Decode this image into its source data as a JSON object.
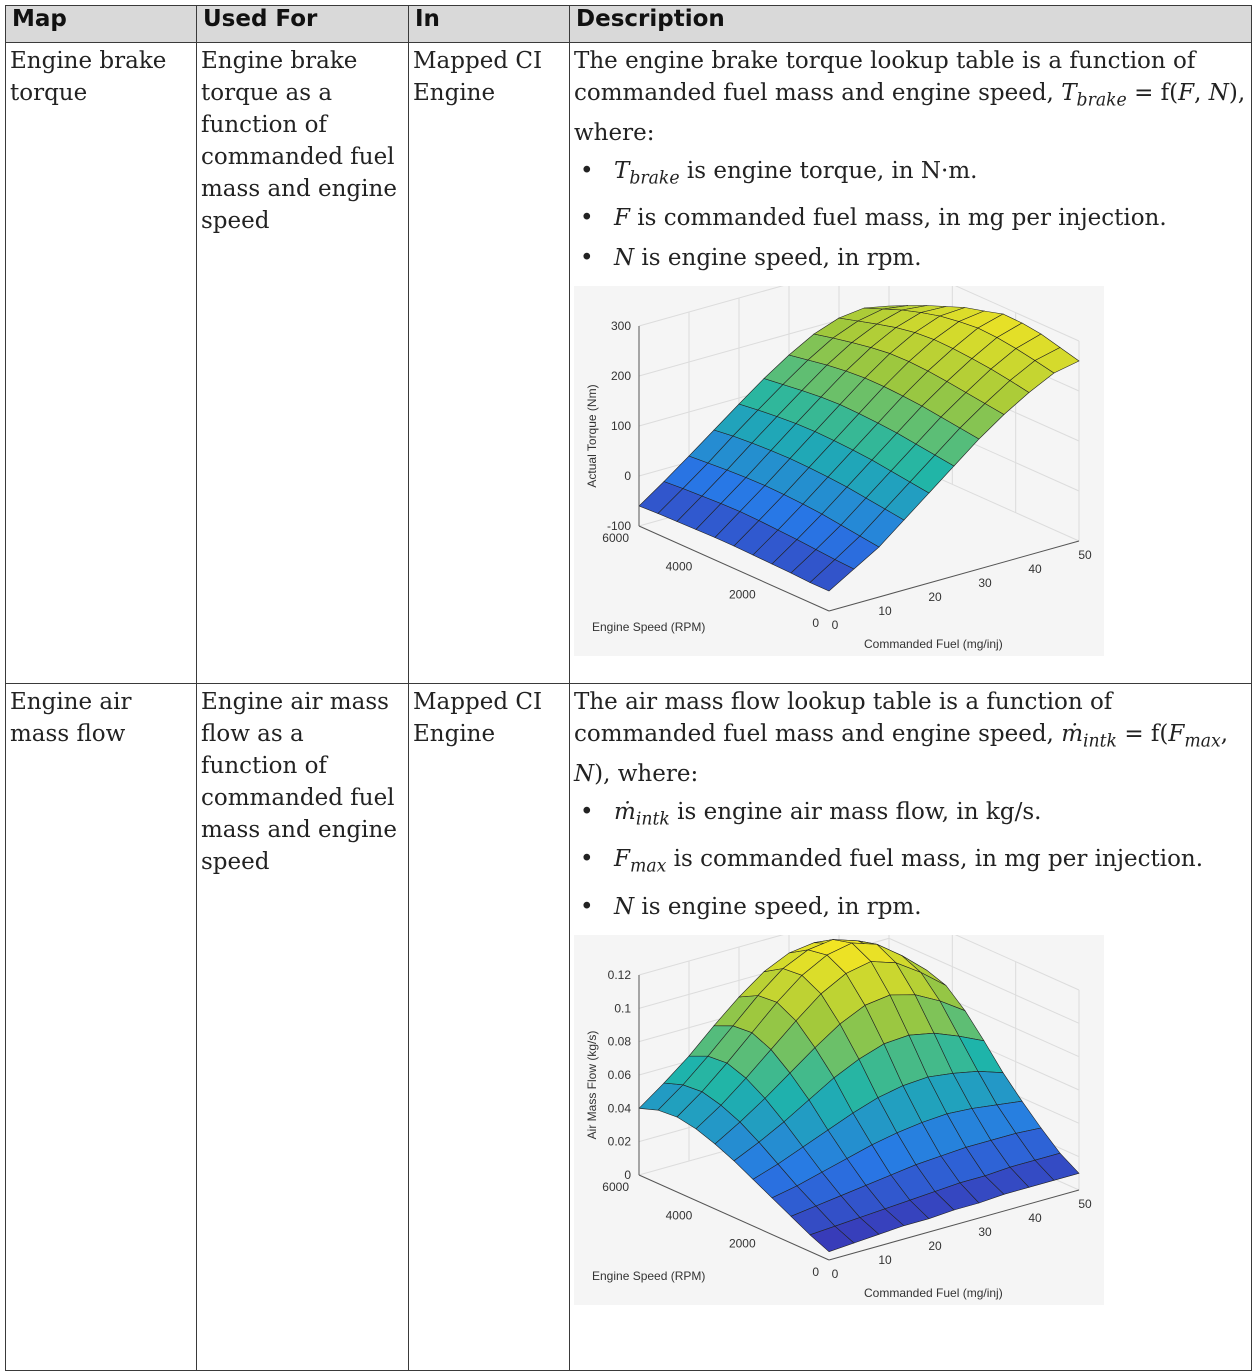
{
  "headers": {
    "map": "Map",
    "used_for": "Used For",
    "in": "In",
    "description": "Description"
  },
  "rows": [
    {
      "map": "Engine brake torque",
      "used_for": "Engine brake torque as a function of commanded fuel mass and engine speed",
      "in": "Mapped CI Engine",
      "desc_intro": "The engine brake torque lookup table is a function of commanded fuel mass and engine speed,",
      "desc_formula": {
        "lhs": "T",
        "lhs_sub": "brake",
        "eq": " = f(",
        "arg1": "F",
        "sep": ", ",
        "arg2": "N",
        "end": "), where:"
      },
      "bullets": [
        {
          "sym": "T",
          "sub": "brake",
          "text": " is engine torque, in N·m."
        },
        {
          "sym": "F",
          "sub": "",
          "text": " is commanded fuel mass, in mg per injection."
        },
        {
          "sym": "N",
          "sub": "",
          "text": " is engine speed, in rpm."
        }
      ],
      "chart": {
        "zlabel": "Actual Torque (Nm)",
        "ylabel": "Engine Speed (RPM)",
        "xlabel": "Commanded Fuel (mg/inj)",
        "zticks": [
          "300",
          "200",
          "100",
          "0",
          "-100"
        ],
        "yticks": [
          "6000",
          "4000",
          "2000",
          "0"
        ],
        "xticks": [
          "0",
          "10",
          "20",
          "30",
          "40",
          "50"
        ]
      }
    },
    {
      "map": "Engine air mass flow",
      "used_for": "Engine air mass flow as a function of commanded fuel mass and engine speed",
      "in": "Mapped CI Engine",
      "desc_intro": "The air mass flow lookup table is a function of commanded fuel mass and engine speed,",
      "desc_formula": {
        "lhs": "ṁ",
        "lhs_sub": "intk",
        "eq": " = f(",
        "arg1": "F",
        "arg1_sub": "max",
        "sep": ", ",
        "arg2": "N",
        "end": "), where:"
      },
      "bullets": [
        {
          "sym": "ṁ",
          "sub": "intk",
          "text": " is engine air mass flow, in kg/s."
        },
        {
          "sym": "F",
          "sub": "max",
          "text": " is commanded fuel mass, in mg per injection."
        },
        {
          "sym": "N",
          "sub": "",
          "text": " is engine speed, in rpm."
        }
      ],
      "chart": {
        "zlabel": "Air Mass Flow (kg/s)",
        "ylabel": "Engine Speed (RPM)",
        "xlabel": "Commanded Fuel (mg/inj)",
        "zticks": [
          "0.12",
          "0.1",
          "0.08",
          "0.06",
          "0.04",
          "0.02",
          "0"
        ],
        "yticks": [
          "6000",
          "4000",
          "2000",
          "0"
        ],
        "xticks": [
          "0",
          "10",
          "20",
          "30",
          "40",
          "50"
        ]
      }
    }
  ],
  "colors": {
    "header_bg": "#d9d9d9",
    "border": "#3a3a3a",
    "surface_low": "#3a2ba8",
    "surface_mid": "#20b2aa",
    "surface_high": "#f7d31e"
  },
  "chart_data": [
    {
      "type": "surface",
      "title": "",
      "xlabel": "Commanded Fuel (mg/inj)",
      "ylabel": "Engine Speed (RPM)",
      "zlabel": "Actual Torque (Nm)",
      "xlim": [
        0,
        50
      ],
      "ylim": [
        0,
        6000
      ],
      "zlim": [
        -100,
        300
      ],
      "x": [
        0,
        5,
        10,
        15,
        20,
        25,
        30,
        35,
        40,
        45,
        50
      ],
      "y": [
        0,
        600,
        1200,
        1800,
        2400,
        3000,
        3600,
        4200,
        4800,
        5400,
        6000
      ],
      "z": [
        [
          -60,
          -30,
          0,
          40,
          80,
          120,
          160,
          195,
          225,
          250,
          260
        ],
        [
          -60,
          -28,
          5,
          45,
          85,
          125,
          165,
          200,
          232,
          258,
          270
        ],
        [
          -58,
          -25,
          10,
          50,
          90,
          130,
          170,
          205,
          238,
          265,
          280
        ],
        [
          -57,
          -22,
          15,
          55,
          95,
          135,
          175,
          210,
          242,
          270,
          285
        ],
        [
          -56,
          -20,
          18,
          58,
          98,
          138,
          178,
          214,
          245,
          272,
          286
        ],
        [
          -55,
          -18,
          20,
          60,
          100,
          140,
          180,
          216,
          246,
          268,
          275
        ],
        [
          -55,
          -17,
          21,
          61,
          101,
          141,
          180,
          215,
          243,
          262,
          265
        ],
        [
          -56,
          -18,
          20,
          60,
          100,
          139,
          177,
          210,
          236,
          252,
          250
        ],
        [
          -57,
          -20,
          18,
          58,
          97,
          135,
          172,
          203,
          226,
          240,
          235
        ],
        [
          -58,
          -22,
          15,
          55,
          93,
          130,
          165,
          195,
          215,
          225,
          218
        ],
        [
          -60,
          -25,
          12,
          50,
          88,
          125,
          158,
          186,
          204,
          210,
          200
        ]
      ],
      "grid": true
    },
    {
      "type": "surface",
      "title": "",
      "xlabel": "Commanded Fuel (mg/inj)",
      "ylabel": "Engine Speed (RPM)",
      "zlabel": "Air Mass Flow (kg/s)",
      "xlim": [
        0,
        50
      ],
      "ylim": [
        0,
        6000
      ],
      "zlim": [
        0,
        0.12
      ],
      "x": [
        0,
        5,
        10,
        15,
        20,
        25,
        30,
        35,
        40,
        45,
        50
      ],
      "y": [
        0,
        600,
        1200,
        1800,
        2400,
        3000,
        3600,
        4200,
        4800,
        5400,
        6000
      ],
      "z": [
        [
          0.005,
          0.006,
          0.007,
          0.008,
          0.008,
          0.009,
          0.009,
          0.01,
          0.01,
          0.01,
          0.01
        ],
        [
          0.01,
          0.011,
          0.012,
          0.013,
          0.014,
          0.015,
          0.016,
          0.016,
          0.017,
          0.017,
          0.017
        ],
        [
          0.016,
          0.018,
          0.02,
          0.022,
          0.024,
          0.026,
          0.027,
          0.028,
          0.028,
          0.028,
          0.027
        ],
        [
          0.022,
          0.025,
          0.029,
          0.033,
          0.037,
          0.04,
          0.042,
          0.043,
          0.042,
          0.04,
          0.038
        ],
        [
          0.028,
          0.033,
          0.039,
          0.045,
          0.051,
          0.056,
          0.059,
          0.06,
          0.058,
          0.055,
          0.05
        ],
        [
          0.034,
          0.041,
          0.049,
          0.058,
          0.067,
          0.074,
          0.079,
          0.08,
          0.077,
          0.071,
          0.064
        ],
        [
          0.039,
          0.048,
          0.058,
          0.069,
          0.08,
          0.09,
          0.097,
          0.099,
          0.095,
          0.087,
          0.077
        ],
        [
          0.043,
          0.053,
          0.065,
          0.078,
          0.091,
          0.103,
          0.111,
          0.114,
          0.109,
          0.099,
          0.087
        ],
        [
          0.045,
          0.056,
          0.069,
          0.083,
          0.097,
          0.109,
          0.117,
          0.12,
          0.115,
          0.104,
          0.091
        ],
        [
          0.044,
          0.055,
          0.068,
          0.082,
          0.096,
          0.108,
          0.115,
          0.117,
          0.112,
          0.101,
          0.088
        ],
        [
          0.04,
          0.051,
          0.063,
          0.077,
          0.09,
          0.101,
          0.108,
          0.11,
          0.105,
          0.095,
          0.083
        ]
      ],
      "grid": true
    }
  ]
}
